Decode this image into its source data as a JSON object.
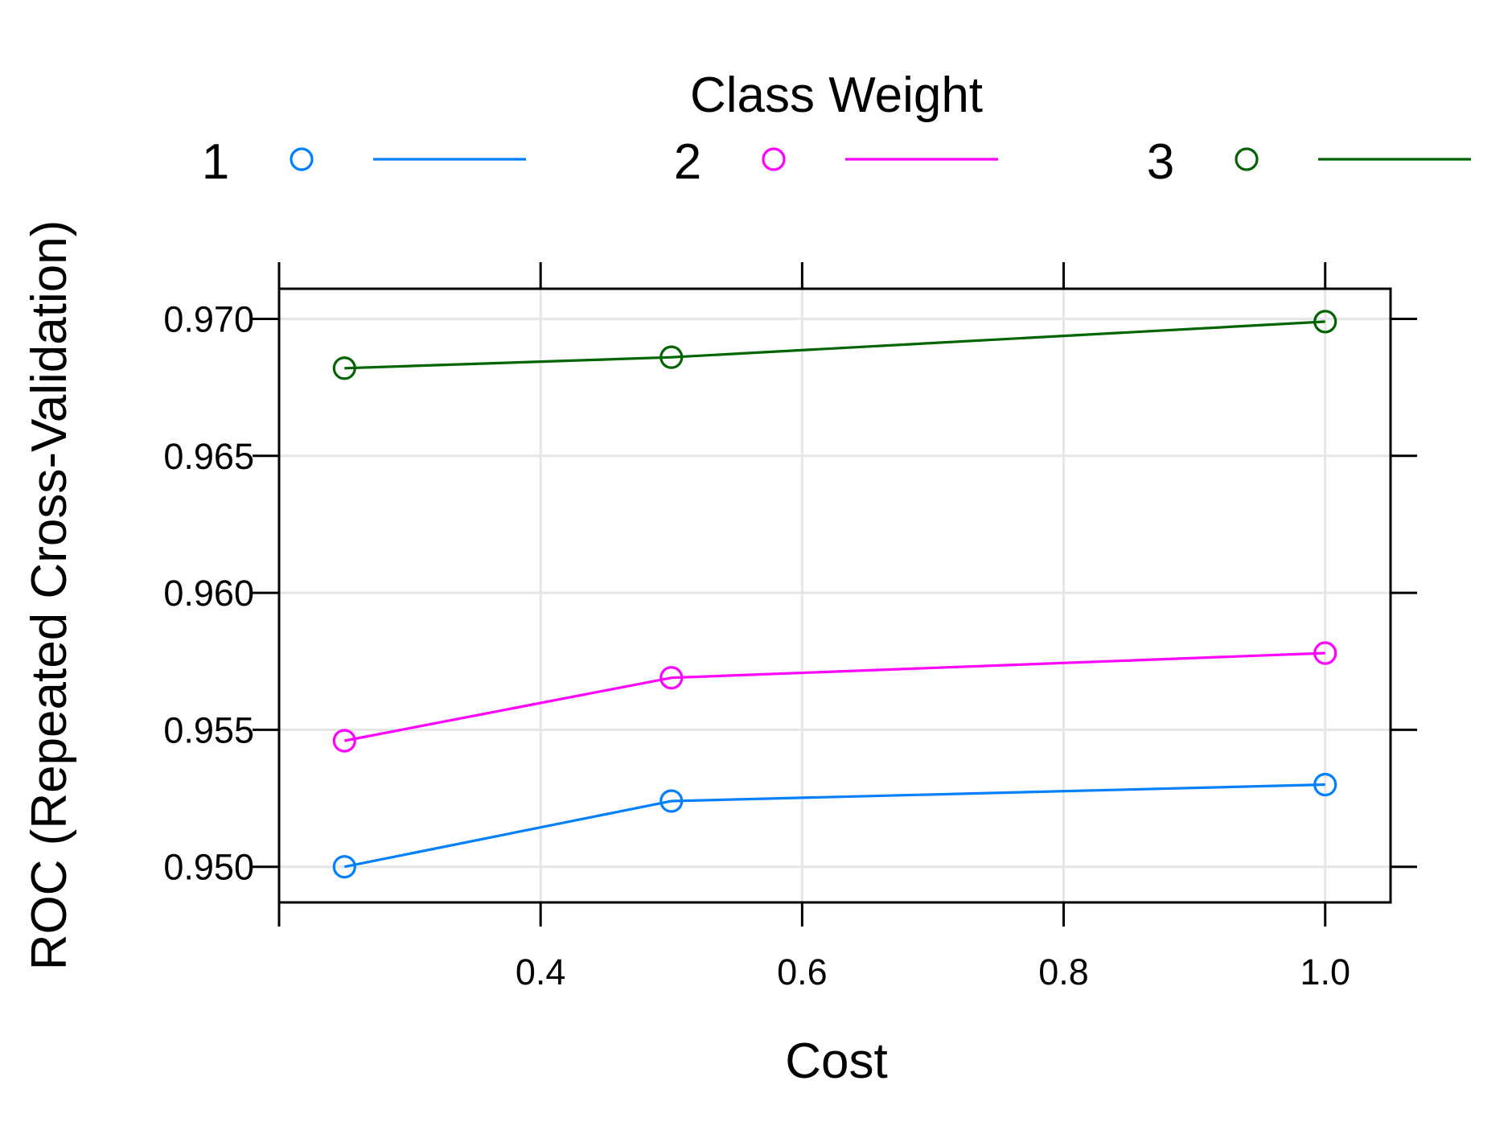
{
  "chart_data": {
    "type": "line",
    "legend": {
      "title": "Class Weight",
      "placement": "top"
    },
    "xlabel": "Cost",
    "ylabel": "ROC (Repeated Cross-Validation)",
    "x_ticks": [
      "0.4",
      "0.6",
      "0.8",
      "1.0"
    ],
    "y_ticks": [
      "0.950",
      "0.955",
      "0.960",
      "0.965",
      "0.970"
    ],
    "xlim": [
      0.2,
      1.05
    ],
    "ylim": [
      0.9487,
      0.9711
    ],
    "grid": true,
    "series": [
      {
        "name": "1",
        "color": "#0080ff",
        "marker": "open-circle",
        "x": [
          0.25,
          0.5,
          1.0
        ],
        "y": [
          0.95,
          0.9524,
          0.953
        ]
      },
      {
        "name": "2",
        "color": "#ff00ff",
        "marker": "open-circle",
        "x": [
          0.25,
          0.5,
          1.0
        ],
        "y": [
          0.9546,
          0.9569,
          0.9578
        ]
      },
      {
        "name": "3",
        "color": "#006400",
        "marker": "open-circle",
        "x": [
          0.25,
          0.5,
          1.0
        ],
        "y": [
          0.9682,
          0.9686,
          0.9699
        ]
      }
    ]
  }
}
